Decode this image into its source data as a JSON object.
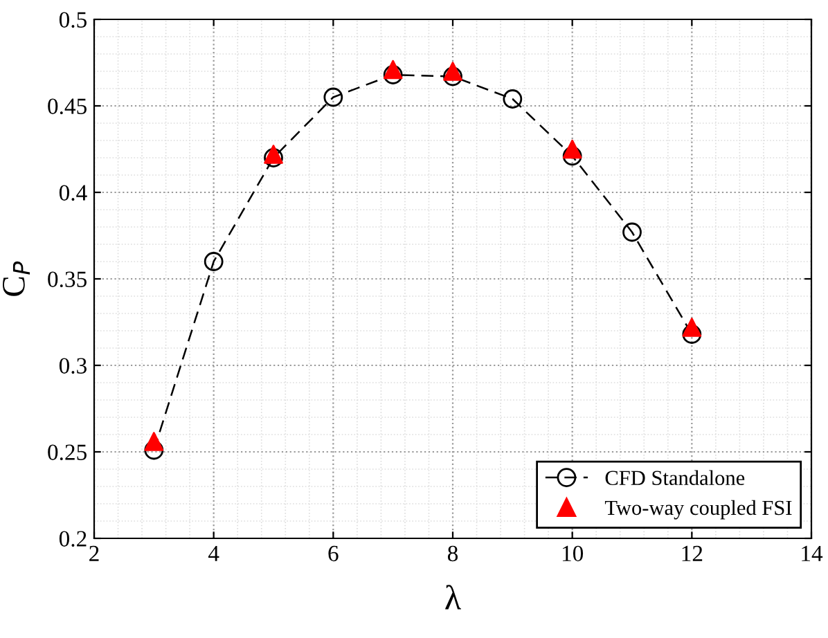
{
  "chart_data": {
    "type": "line",
    "xlabel": "λ",
    "ylabel": "C$_{P}$",
    "series": [
      {
        "name": "CFD Standalone",
        "color": "#000000",
        "marker": "circle",
        "line_style": "dashed",
        "x": [
          3,
          4,
          5,
          6,
          7,
          8,
          9,
          10,
          11,
          12
        ],
        "values": [
          0.251,
          0.36,
          0.42,
          0.455,
          0.468,
          0.467,
          0.454,
          0.421,
          0.377,
          0.318
        ]
      },
      {
        "name": "Two-way coupled FSI",
        "type": "scatter",
        "color": "#ff0000",
        "marker": "triangle",
        "x": [
          3,
          5,
          7,
          8,
          10,
          12
        ],
        "values": [
          0.256,
          0.422,
          0.471,
          0.47,
          0.425,
          0.322
        ]
      }
    ],
    "xlim": [
      2,
      14
    ],
    "xticks": [
      2,
      4,
      6,
      8,
      10,
      12,
      14
    ],
    "ylim": [
      0.2,
      0.5
    ],
    "yticks": [
      0.2,
      0.25,
      0.3,
      0.35,
      0.4,
      0.45,
      0.5
    ],
    "grid": true,
    "legend": "bottom right"
  }
}
